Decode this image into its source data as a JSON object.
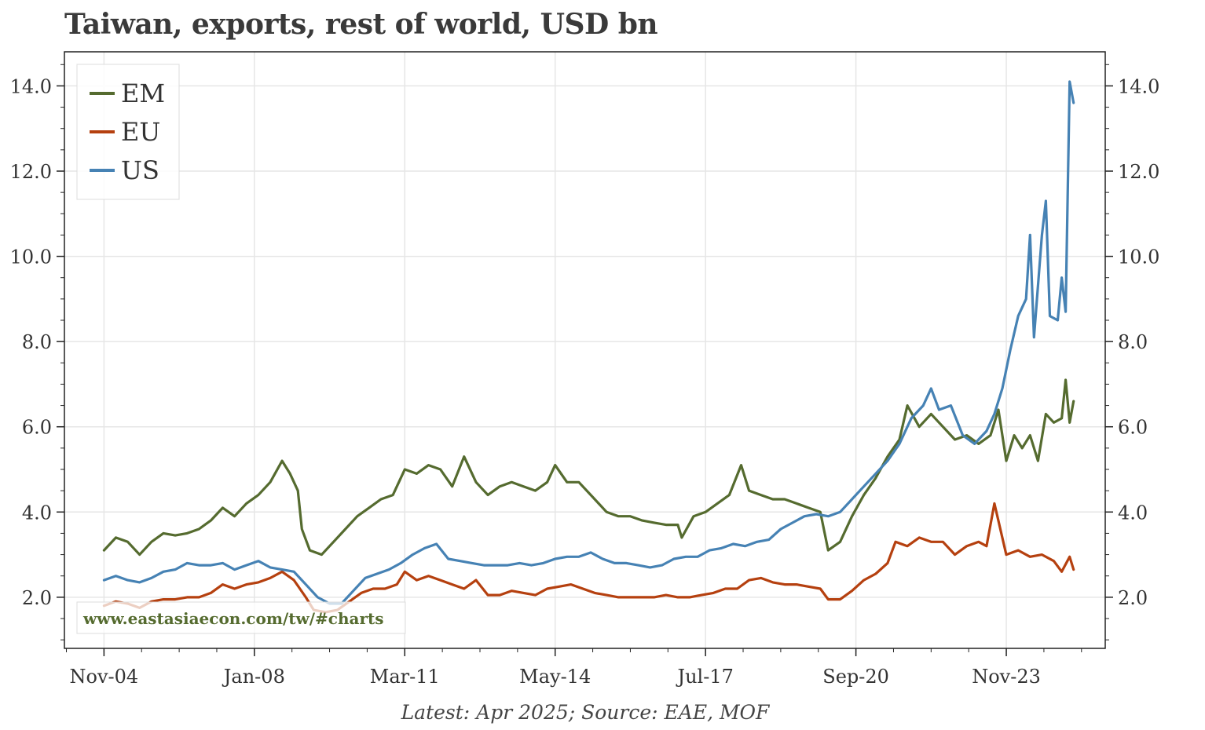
{
  "chart_data": {
    "type": "line",
    "title": "Taiwan, exports, rest of world, USD bn",
    "footnote": "Latest: Apr 2025; Source: EAE, MOF",
    "watermark": "www.eastasiaecon.com/tw/#charts",
    "x_tick_labels": [
      "Nov-04",
      "Jan-08",
      "Mar-11",
      "May-14",
      "Jul-17",
      "Sep-20",
      "Nov-23"
    ],
    "y_tick_labels": [
      "2.0",
      "4.0",
      "6.0",
      "8.0",
      "10.0",
      "12.0",
      "14.0"
    ],
    "ylim": [
      0.8,
      14.8
    ],
    "xlim": [
      "2004-01",
      "2025-12"
    ],
    "grid": true,
    "legend_position": "top-left",
    "colors": {
      "EM": "#556b2f",
      "EU": "#b5400f",
      "US": "#4682b4",
      "watermark": "#556b2f"
    },
    "series": [
      {
        "name": "EM",
        "color": "#556b2f",
        "points": [
          [
            "2004-11",
            3.1
          ],
          [
            "2005-02",
            3.4
          ],
          [
            "2005-05",
            3.3
          ],
          [
            "2005-08",
            3.0
          ],
          [
            "2005-11",
            3.3
          ],
          [
            "2006-02",
            3.5
          ],
          [
            "2006-05",
            3.45
          ],
          [
            "2006-08",
            3.5
          ],
          [
            "2006-11",
            3.6
          ],
          [
            "2007-02",
            3.8
          ],
          [
            "2007-05",
            4.1
          ],
          [
            "2007-08",
            3.9
          ],
          [
            "2007-11",
            4.2
          ],
          [
            "2008-02",
            4.4
          ],
          [
            "2008-05",
            4.7
          ],
          [
            "2008-08",
            5.2
          ],
          [
            "2008-10",
            4.9
          ],
          [
            "2008-12",
            4.5
          ],
          [
            "2009-01",
            3.6
          ],
          [
            "2009-03",
            3.1
          ],
          [
            "2009-06",
            3.0
          ],
          [
            "2009-09",
            3.3
          ],
          [
            "2009-12",
            3.6
          ],
          [
            "2010-03",
            3.9
          ],
          [
            "2010-06",
            4.1
          ],
          [
            "2010-09",
            4.3
          ],
          [
            "2010-12",
            4.4
          ],
          [
            "2011-03",
            5.0
          ],
          [
            "2011-06",
            4.9
          ],
          [
            "2011-09",
            5.1
          ],
          [
            "2011-12",
            5.0
          ],
          [
            "2012-03",
            4.6
          ],
          [
            "2012-06",
            5.3
          ],
          [
            "2012-09",
            4.7
          ],
          [
            "2012-12",
            4.4
          ],
          [
            "2013-03",
            4.6
          ],
          [
            "2013-06",
            4.7
          ],
          [
            "2013-09",
            4.6
          ],
          [
            "2013-12",
            4.5
          ],
          [
            "2014-03",
            4.7
          ],
          [
            "2014-05",
            5.1
          ],
          [
            "2014-08",
            4.7
          ],
          [
            "2014-11",
            4.7
          ],
          [
            "2015-03",
            4.3
          ],
          [
            "2015-06",
            4.0
          ],
          [
            "2015-09",
            3.9
          ],
          [
            "2015-12",
            3.9
          ],
          [
            "2016-03",
            3.8
          ],
          [
            "2016-06",
            3.75
          ],
          [
            "2016-09",
            3.7
          ],
          [
            "2016-12",
            3.7
          ],
          [
            "2017-01",
            3.4
          ],
          [
            "2017-04",
            3.9
          ],
          [
            "2017-07",
            4.0
          ],
          [
            "2017-10",
            4.2
          ],
          [
            "2018-01",
            4.4
          ],
          [
            "2018-04",
            5.1
          ],
          [
            "2018-06",
            4.5
          ],
          [
            "2018-09",
            4.4
          ],
          [
            "2018-12",
            4.3
          ],
          [
            "2019-03",
            4.3
          ],
          [
            "2019-06",
            4.2
          ],
          [
            "2019-09",
            4.1
          ],
          [
            "2019-12",
            4.0
          ],
          [
            "2020-02",
            3.1
          ],
          [
            "2020-05",
            3.3
          ],
          [
            "2020-08",
            3.9
          ],
          [
            "2020-11",
            4.4
          ],
          [
            "2021-02",
            4.8
          ],
          [
            "2021-05",
            5.3
          ],
          [
            "2021-08",
            5.7
          ],
          [
            "2021-10",
            6.5
          ],
          [
            "2022-01",
            6.0
          ],
          [
            "2022-04",
            6.3
          ],
          [
            "2022-07",
            6.0
          ],
          [
            "2022-10",
            5.7
          ],
          [
            "2023-01",
            5.8
          ],
          [
            "2023-04",
            5.6
          ],
          [
            "2023-07",
            5.8
          ],
          [
            "2023-09",
            6.4
          ],
          [
            "2023-11",
            5.2
          ],
          [
            "2024-01",
            5.8
          ],
          [
            "2024-03",
            5.5
          ],
          [
            "2024-05",
            5.8
          ],
          [
            "2024-07",
            5.2
          ],
          [
            "2024-09",
            6.3
          ],
          [
            "2024-11",
            6.1
          ],
          [
            "2025-01",
            6.2
          ],
          [
            "2025-02",
            7.1
          ],
          [
            "2025-03",
            6.1
          ],
          [
            "2025-04",
            6.6
          ]
        ]
      },
      {
        "name": "EU",
        "color": "#b5400f",
        "points": [
          [
            "2004-11",
            1.8
          ],
          [
            "2005-02",
            1.9
          ],
          [
            "2005-05",
            1.85
          ],
          [
            "2005-08",
            1.75
          ],
          [
            "2005-11",
            1.9
          ],
          [
            "2006-02",
            1.95
          ],
          [
            "2006-05",
            1.95
          ],
          [
            "2006-08",
            2.0
          ],
          [
            "2006-11",
            2.0
          ],
          [
            "2007-02",
            2.1
          ],
          [
            "2007-05",
            2.3
          ],
          [
            "2007-08",
            2.2
          ],
          [
            "2007-11",
            2.3
          ],
          [
            "2008-02",
            2.35
          ],
          [
            "2008-05",
            2.45
          ],
          [
            "2008-08",
            2.6
          ],
          [
            "2008-11",
            2.4
          ],
          [
            "2009-02",
            2.0
          ],
          [
            "2009-04",
            1.7
          ],
          [
            "2009-07",
            1.65
          ],
          [
            "2009-10",
            1.7
          ],
          [
            "2010-01",
            1.9
          ],
          [
            "2010-04",
            2.1
          ],
          [
            "2010-07",
            2.2
          ],
          [
            "2010-10",
            2.2
          ],
          [
            "2011-01",
            2.3
          ],
          [
            "2011-03",
            2.6
          ],
          [
            "2011-06",
            2.4
          ],
          [
            "2011-09",
            2.5
          ],
          [
            "2011-12",
            2.4
          ],
          [
            "2012-03",
            2.3
          ],
          [
            "2012-06",
            2.2
          ],
          [
            "2012-09",
            2.4
          ],
          [
            "2012-12",
            2.05
          ],
          [
            "2013-03",
            2.05
          ],
          [
            "2013-06",
            2.15
          ],
          [
            "2013-09",
            2.1
          ],
          [
            "2013-12",
            2.05
          ],
          [
            "2014-03",
            2.2
          ],
          [
            "2014-06",
            2.25
          ],
          [
            "2014-09",
            2.3
          ],
          [
            "2014-12",
            2.2
          ],
          [
            "2015-03",
            2.1
          ],
          [
            "2015-06",
            2.05
          ],
          [
            "2015-09",
            2.0
          ],
          [
            "2015-12",
            2.0
          ],
          [
            "2016-03",
            2.0
          ],
          [
            "2016-06",
            2.0
          ],
          [
            "2016-09",
            2.05
          ],
          [
            "2016-12",
            2.0
          ],
          [
            "2017-03",
            2.0
          ],
          [
            "2017-06",
            2.05
          ],
          [
            "2017-09",
            2.1
          ],
          [
            "2017-12",
            2.2
          ],
          [
            "2018-03",
            2.2
          ],
          [
            "2018-06",
            2.4
          ],
          [
            "2018-09",
            2.45
          ],
          [
            "2018-12",
            2.35
          ],
          [
            "2019-03",
            2.3
          ],
          [
            "2019-06",
            2.3
          ],
          [
            "2019-09",
            2.25
          ],
          [
            "2019-12",
            2.2
          ],
          [
            "2020-02",
            1.95
          ],
          [
            "2020-05",
            1.95
          ],
          [
            "2020-08",
            2.15
          ],
          [
            "2020-11",
            2.4
          ],
          [
            "2021-02",
            2.55
          ],
          [
            "2021-05",
            2.8
          ],
          [
            "2021-07",
            3.3
          ],
          [
            "2021-10",
            3.2
          ],
          [
            "2022-01",
            3.4
          ],
          [
            "2022-04",
            3.3
          ],
          [
            "2022-07",
            3.3
          ],
          [
            "2022-10",
            3.0
          ],
          [
            "2023-01",
            3.2
          ],
          [
            "2023-04",
            3.3
          ],
          [
            "2023-06",
            3.2
          ],
          [
            "2023-08",
            4.2
          ],
          [
            "2023-11",
            3.0
          ],
          [
            "2024-02",
            3.1
          ],
          [
            "2024-05",
            2.95
          ],
          [
            "2024-08",
            3.0
          ],
          [
            "2024-11",
            2.85
          ],
          [
            "2025-01",
            2.6
          ],
          [
            "2025-03",
            2.95
          ],
          [
            "2025-04",
            2.65
          ]
        ]
      },
      {
        "name": "US",
        "color": "#4682b4",
        "points": [
          [
            "2004-11",
            2.4
          ],
          [
            "2005-02",
            2.5
          ],
          [
            "2005-05",
            2.4
          ],
          [
            "2005-08",
            2.35
          ],
          [
            "2005-11",
            2.45
          ],
          [
            "2006-02",
            2.6
          ],
          [
            "2006-05",
            2.65
          ],
          [
            "2006-08",
            2.8
          ],
          [
            "2006-11",
            2.75
          ],
          [
            "2007-02",
            2.75
          ],
          [
            "2007-05",
            2.8
          ],
          [
            "2007-08",
            2.65
          ],
          [
            "2007-11",
            2.75
          ],
          [
            "2008-02",
            2.85
          ],
          [
            "2008-05",
            2.7
          ],
          [
            "2008-08",
            2.65
          ],
          [
            "2008-11",
            2.6
          ],
          [
            "2009-02",
            2.3
          ],
          [
            "2009-05",
            2.0
          ],
          [
            "2009-08",
            1.85
          ],
          [
            "2009-11",
            1.85
          ],
          [
            "2010-02",
            2.15
          ],
          [
            "2010-05",
            2.45
          ],
          [
            "2010-08",
            2.55
          ],
          [
            "2010-11",
            2.65
          ],
          [
            "2011-02",
            2.8
          ],
          [
            "2011-05",
            3.0
          ],
          [
            "2011-08",
            3.15
          ],
          [
            "2011-11",
            3.25
          ],
          [
            "2012-02",
            2.9
          ],
          [
            "2012-05",
            2.85
          ],
          [
            "2012-08",
            2.8
          ],
          [
            "2012-11",
            2.75
          ],
          [
            "2013-02",
            2.75
          ],
          [
            "2013-05",
            2.75
          ],
          [
            "2013-08",
            2.8
          ],
          [
            "2013-11",
            2.75
          ],
          [
            "2014-02",
            2.8
          ],
          [
            "2014-05",
            2.9
          ],
          [
            "2014-08",
            2.95
          ],
          [
            "2014-11",
            2.95
          ],
          [
            "2015-02",
            3.05
          ],
          [
            "2015-05",
            2.9
          ],
          [
            "2015-08",
            2.8
          ],
          [
            "2015-11",
            2.8
          ],
          [
            "2016-02",
            2.75
          ],
          [
            "2016-05",
            2.7
          ],
          [
            "2016-08",
            2.75
          ],
          [
            "2016-11",
            2.9
          ],
          [
            "2017-02",
            2.95
          ],
          [
            "2017-05",
            2.95
          ],
          [
            "2017-08",
            3.1
          ],
          [
            "2017-11",
            3.15
          ],
          [
            "2018-02",
            3.25
          ],
          [
            "2018-05",
            3.2
          ],
          [
            "2018-08",
            3.3
          ],
          [
            "2018-11",
            3.35
          ],
          [
            "2019-02",
            3.6
          ],
          [
            "2019-05",
            3.75
          ],
          [
            "2019-08",
            3.9
          ],
          [
            "2019-11",
            3.95
          ],
          [
            "2020-02",
            3.9
          ],
          [
            "2020-05",
            4.0
          ],
          [
            "2020-08",
            4.3
          ],
          [
            "2020-11",
            4.6
          ],
          [
            "2021-02",
            4.9
          ],
          [
            "2021-05",
            5.2
          ],
          [
            "2021-08",
            5.6
          ],
          [
            "2021-11",
            6.2
          ],
          [
            "2022-02",
            6.5
          ],
          [
            "2022-04",
            6.9
          ],
          [
            "2022-06",
            6.4
          ],
          [
            "2022-09",
            6.5
          ],
          [
            "2022-12",
            5.8
          ],
          [
            "2023-03",
            5.6
          ],
          [
            "2023-06",
            5.9
          ],
          [
            "2023-08",
            6.3
          ],
          [
            "2023-10",
            6.9
          ],
          [
            "2023-12",
            7.8
          ],
          [
            "2024-02",
            8.6
          ],
          [
            "2024-04",
            9.0
          ],
          [
            "2024-05",
            10.5
          ],
          [
            "2024-06",
            8.1
          ],
          [
            "2024-08",
            10.5
          ],
          [
            "2024-09",
            11.3
          ],
          [
            "2024-10",
            8.6
          ],
          [
            "2024-12",
            8.5
          ],
          [
            "2025-01",
            9.5
          ],
          [
            "2025-02",
            8.7
          ],
          [
            "2025-03",
            14.1
          ],
          [
            "2025-04",
            13.6
          ]
        ]
      }
    ]
  }
}
